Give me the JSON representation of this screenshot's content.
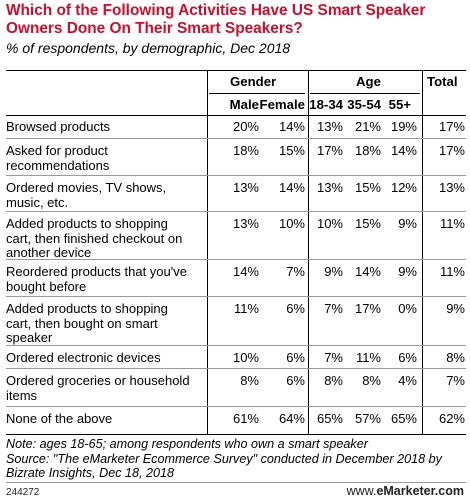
{
  "title": "Which of the Following Activities Have US Smart Speaker Owners Done On Their Smart Speakers?",
  "subtitle": "% of respondents, by demographic, Dec 2018",
  "groups": {
    "gender": "Gender",
    "age": "Age",
    "total": "Total"
  },
  "columns": [
    "Male",
    "Female",
    "18-34",
    "35-54",
    "55+"
  ],
  "chart_data": {
    "type": "table",
    "title": "Which of the Following Activities Have US Smart Speaker Owners Done On Their Smart Speakers?",
    "subtitle": "% of respondents, by demographic, Dec 2018",
    "column_groups": [
      {
        "name": "Gender",
        "columns": [
          "Male",
          "Female"
        ]
      },
      {
        "name": "Age",
        "columns": [
          "18-34",
          "35-54",
          "55+"
        ]
      },
      {
        "name": "Total",
        "columns": [
          "Total"
        ]
      }
    ],
    "rows": [
      {
        "label": "Browsed products",
        "values": [
          "20%",
          "14%",
          "13%",
          "21%",
          "19%",
          "17%"
        ]
      },
      {
        "label": "Asked for product recommendations",
        "values": [
          "18%",
          "15%",
          "17%",
          "18%",
          "14%",
          "17%"
        ]
      },
      {
        "label": "Ordered movies, TV shows, music, etc.",
        "values": [
          "13%",
          "14%",
          "13%",
          "15%",
          "12%",
          "13%"
        ]
      },
      {
        "label": "Added products to shopping cart, then finished checkout on another device",
        "values": [
          "13%",
          "10%",
          "10%",
          "15%",
          "9%",
          "11%"
        ]
      },
      {
        "label": "Reordered products that you've bought before",
        "values": [
          "14%",
          "7%",
          "9%",
          "14%",
          "9%",
          "11%"
        ]
      },
      {
        "label": "Added products to shopping cart, then bought on smart speaker",
        "values": [
          "11%",
          "6%",
          "7%",
          "17%",
          "0%",
          "9%"
        ]
      },
      {
        "label": "Ordered electronic devices",
        "values": [
          "10%",
          "6%",
          "7%",
          "11%",
          "6%",
          "8%"
        ]
      },
      {
        "label": "Ordered groceries or household items",
        "values": [
          "8%",
          "6%",
          "8%",
          "8%",
          "4%",
          "7%"
        ]
      },
      {
        "label": "None of the above",
        "values": [
          "61%",
          "64%",
          "65%",
          "57%",
          "65%",
          "62%"
        ]
      }
    ]
  },
  "note": "Note: ages 18-65; among respondents who own a smart speaker\nSource: \"The eMarketer Ecommerce Survey\" conducted in December 2018 by Bizrate Insights, Dec 18, 2018",
  "footer": {
    "id": "244272",
    "brand_prefix": "www.",
    "brand": "eMarketer.com"
  }
}
